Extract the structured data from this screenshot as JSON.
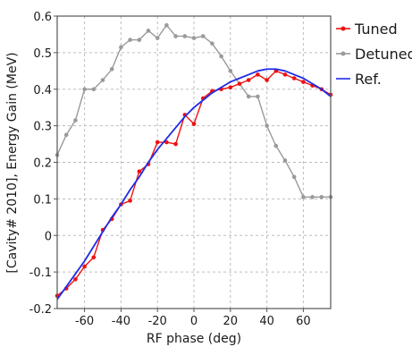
{
  "chart_data": {
    "type": "line",
    "title": "",
    "xlabel": "RF phase (deg)",
    "ylabel": "[Cavity# 2010], Energy Gain (MeV)",
    "xlim": [
      -75,
      75
    ],
    "ylim": [
      -0.2,
      0.6
    ],
    "xticks": [
      -60,
      -40,
      -20,
      0,
      20,
      40,
      60
    ],
    "yticks": [
      -0.2,
      -0.1,
      0,
      0.1,
      0.2,
      0.3,
      0.4,
      0.5,
      0.6
    ],
    "grid": true,
    "legend_position": "outside-right",
    "series": [
      {
        "name": "Tuned",
        "color": "#ee1111",
        "marker": "circle",
        "x": [
          -75,
          -70,
          -65,
          -60,
          -55,
          -50,
          -45,
          -40,
          -35,
          -30,
          -25,
          -20,
          -15,
          -10,
          -5,
          0,
          5,
          10,
          15,
          20,
          25,
          30,
          35,
          40,
          45,
          50,
          55,
          60,
          65,
          70,
          75
        ],
        "y": [
          -0.165,
          -0.145,
          -0.12,
          -0.085,
          -0.06,
          0.015,
          0.045,
          0.085,
          0.095,
          0.175,
          0.195,
          0.255,
          0.255,
          0.25,
          0.33,
          0.305,
          0.375,
          0.395,
          0.4,
          0.405,
          0.415,
          0.425,
          0.44,
          0.425,
          0.45,
          0.44,
          0.43,
          0.42,
          0.41,
          0.4,
          0.385
        ]
      },
      {
        "name": "Detuned",
        "color": "#9a9a9a",
        "marker": "circle",
        "x": [
          -75,
          -70,
          -65,
          -60,
          -55,
          -50,
          -45,
          -40,
          -35,
          -30,
          -25,
          -20,
          -15,
          -10,
          -5,
          0,
          5,
          10,
          15,
          20,
          25,
          30,
          35,
          40,
          45,
          50,
          55,
          60,
          65,
          70,
          75
        ],
        "y": [
          0.22,
          0.275,
          0.315,
          0.4,
          0.4,
          0.425,
          0.455,
          0.515,
          0.535,
          0.535,
          0.56,
          0.54,
          0.575,
          0.545,
          0.545,
          0.54,
          0.545,
          0.525,
          0.49,
          0.45,
          0.415,
          0.38,
          0.38,
          0.3,
          0.245,
          0.205,
          0.16,
          0.105,
          0.105,
          0.105,
          0.105
        ]
      },
      {
        "name": "Ref.",
        "color": "#1f2bea",
        "marker": "none",
        "x": [
          -75,
          -70,
          -65,
          -60,
          -55,
          -50,
          -45,
          -40,
          -35,
          -30,
          -25,
          -20,
          -15,
          -10,
          -5,
          0,
          5,
          10,
          15,
          20,
          25,
          30,
          35,
          40,
          45,
          50,
          55,
          60,
          65,
          70,
          75
        ],
        "y": [
          -0.175,
          -0.14,
          -0.105,
          -0.07,
          -0.03,
          0.01,
          0.05,
          0.085,
          0.125,
          0.16,
          0.2,
          0.235,
          0.265,
          0.295,
          0.325,
          0.35,
          0.37,
          0.39,
          0.405,
          0.42,
          0.43,
          0.44,
          0.45,
          0.455,
          0.455,
          0.45,
          0.44,
          0.43,
          0.415,
          0.4,
          0.38
        ]
      }
    ]
  }
}
